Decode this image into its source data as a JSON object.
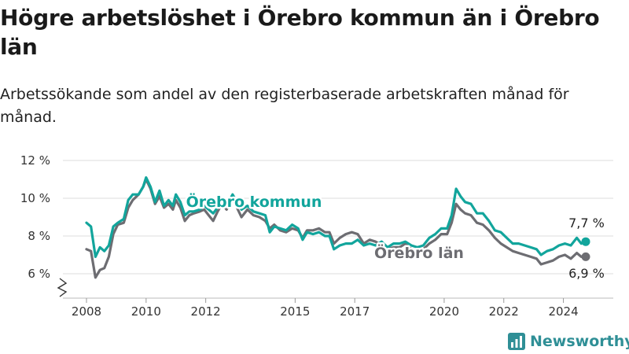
{
  "header": {
    "title": "Högre arbetslöshet i Örebro kommun än i Örebro län",
    "subtitle": "Arbetssökande som andel av den registerbaserade arbetskraften månad för månad."
  },
  "brand": {
    "name": "Newsworthy",
    "color": "#2f8f96"
  },
  "colors": {
    "kommun": "#12a59c",
    "lan": "#6d6d72",
    "grid": "#dddddd"
  },
  "chart_data": {
    "type": "line",
    "ylim": [
      5,
      12
    ],
    "y_ticks": [
      6,
      8,
      10,
      12
    ],
    "y_tick_labels": [
      "6 %",
      "8 %",
      "10 %",
      "12 %"
    ],
    "xlim": [
      2008,
      2025.6
    ],
    "x_ticks": [
      2008,
      2010,
      2012,
      2015,
      2017,
      2020,
      2022,
      2024
    ],
    "x_tick_labels": [
      "2008",
      "2010",
      "2012",
      "2015",
      "2017",
      "2020",
      "2022",
      "2024"
    ],
    "series": [
      {
        "name": "Örebro kommun",
        "color": "#12a59c",
        "end_label": "7,7 %",
        "points": [
          [
            2008.0,
            8.7
          ],
          [
            2008.15,
            8.5
          ],
          [
            2008.3,
            6.9
          ],
          [
            2008.45,
            7.4
          ],
          [
            2008.6,
            7.2
          ],
          [
            2008.75,
            7.5
          ],
          [
            2008.9,
            8.5
          ],
          [
            2009.05,
            8.7
          ],
          [
            2009.25,
            8.9
          ],
          [
            2009.4,
            9.9
          ],
          [
            2009.55,
            10.2
          ],
          [
            2009.75,
            10.2
          ],
          [
            2009.9,
            10.6
          ],
          [
            2010.0,
            11.1
          ],
          [
            2010.15,
            10.6
          ],
          [
            2010.3,
            9.8
          ],
          [
            2010.45,
            10.4
          ],
          [
            2010.6,
            9.6
          ],
          [
            2010.75,
            9.9
          ],
          [
            2010.9,
            9.6
          ],
          [
            2011.0,
            10.2
          ],
          [
            2011.15,
            9.8
          ],
          [
            2011.3,
            9.1
          ],
          [
            2011.45,
            9.3
          ],
          [
            2011.6,
            9.3
          ],
          [
            2011.8,
            9.4
          ],
          [
            2011.95,
            9.6
          ],
          [
            2012.1,
            9.4
          ],
          [
            2012.25,
            9.2
          ],
          [
            2012.4,
            9.5
          ],
          [
            2012.55,
            9.9
          ],
          [
            2012.7,
            9.6
          ],
          [
            2012.9,
            10.2
          ],
          [
            2013.05,
            9.8
          ],
          [
            2013.2,
            9.4
          ],
          [
            2013.4,
            9.6
          ],
          [
            2013.6,
            9.3
          ],
          [
            2013.8,
            9.2
          ],
          [
            2014.0,
            9.1
          ],
          [
            2014.15,
            8.2
          ],
          [
            2014.3,
            8.5
          ],
          [
            2014.5,
            8.4
          ],
          [
            2014.7,
            8.3
          ],
          [
            2014.9,
            8.6
          ],
          [
            2015.1,
            8.4
          ],
          [
            2015.25,
            7.8
          ],
          [
            2015.4,
            8.2
          ],
          [
            2015.6,
            8.1
          ],
          [
            2015.8,
            8.2
          ],
          [
            2016.0,
            8.0
          ],
          [
            2016.15,
            8.0
          ],
          [
            2016.3,
            7.3
          ],
          [
            2016.5,
            7.5
          ],
          [
            2016.7,
            7.6
          ],
          [
            2016.9,
            7.6
          ],
          [
            2017.1,
            7.8
          ],
          [
            2017.3,
            7.5
          ],
          [
            2017.5,
            7.6
          ],
          [
            2017.7,
            7.5
          ],
          [
            2017.9,
            7.7
          ],
          [
            2018.1,
            7.4
          ],
          [
            2018.3,
            7.6
          ],
          [
            2018.5,
            7.6
          ],
          [
            2018.7,
            7.7
          ],
          [
            2018.9,
            7.5
          ],
          [
            2019.1,
            7.4
          ],
          [
            2019.3,
            7.5
          ],
          [
            2019.5,
            7.9
          ],
          [
            2019.7,
            8.1
          ],
          [
            2019.9,
            8.4
          ],
          [
            2020.1,
            8.4
          ],
          [
            2020.25,
            9.1
          ],
          [
            2020.4,
            10.5
          ],
          [
            2020.55,
            10.1
          ],
          [
            2020.7,
            9.8
          ],
          [
            2020.9,
            9.7
          ],
          [
            2021.1,
            9.2
          ],
          [
            2021.3,
            9.2
          ],
          [
            2021.5,
            8.8
          ],
          [
            2021.7,
            8.3
          ],
          [
            2021.9,
            8.2
          ],
          [
            2022.1,
            7.9
          ],
          [
            2022.3,
            7.6
          ],
          [
            2022.5,
            7.6
          ],
          [
            2022.7,
            7.5
          ],
          [
            2022.9,
            7.4
          ],
          [
            2023.1,
            7.3
          ],
          [
            2023.25,
            7.0
          ],
          [
            2023.45,
            7.2
          ],
          [
            2023.65,
            7.3
          ],
          [
            2023.85,
            7.5
          ],
          [
            2024.05,
            7.6
          ],
          [
            2024.25,
            7.5
          ],
          [
            2024.45,
            7.9
          ],
          [
            2024.6,
            7.6
          ],
          [
            2024.75,
            7.7
          ]
        ]
      },
      {
        "name": "Örebro län",
        "color": "#6d6d72",
        "end_label": "6,9 %",
        "points": [
          [
            2008.0,
            7.3
          ],
          [
            2008.15,
            7.2
          ],
          [
            2008.3,
            5.8
          ],
          [
            2008.45,
            6.2
          ],
          [
            2008.6,
            6.3
          ],
          [
            2008.75,
            6.9
          ],
          [
            2008.9,
            8.1
          ],
          [
            2009.05,
            8.6
          ],
          [
            2009.25,
            8.7
          ],
          [
            2009.4,
            9.5
          ],
          [
            2009.55,
            9.9
          ],
          [
            2009.75,
            10.2
          ],
          [
            2009.9,
            10.6
          ],
          [
            2010.0,
            11.0
          ],
          [
            2010.15,
            10.5
          ],
          [
            2010.3,
            9.7
          ],
          [
            2010.45,
            10.1
          ],
          [
            2010.6,
            9.5
          ],
          [
            2010.75,
            9.7
          ],
          [
            2010.9,
            9.4
          ],
          [
            2011.0,
            9.9
          ],
          [
            2011.15,
            9.5
          ],
          [
            2011.3,
            8.8
          ],
          [
            2011.45,
            9.1
          ],
          [
            2011.6,
            9.2
          ],
          [
            2011.8,
            9.3
          ],
          [
            2011.95,
            9.4
          ],
          [
            2012.1,
            9.1
          ],
          [
            2012.25,
            8.8
          ],
          [
            2012.4,
            9.3
          ],
          [
            2012.55,
            9.7
          ],
          [
            2012.7,
            9.4
          ],
          [
            2012.9,
            10.0
          ],
          [
            2013.05,
            9.5
          ],
          [
            2013.2,
            9.0
          ],
          [
            2013.4,
            9.4
          ],
          [
            2013.6,
            9.1
          ],
          [
            2013.8,
            9.0
          ],
          [
            2014.0,
            8.8
          ],
          [
            2014.15,
            8.4
          ],
          [
            2014.3,
            8.6
          ],
          [
            2014.5,
            8.3
          ],
          [
            2014.7,
            8.2
          ],
          [
            2014.9,
            8.4
          ],
          [
            2015.1,
            8.3
          ],
          [
            2015.25,
            7.9
          ],
          [
            2015.4,
            8.3
          ],
          [
            2015.6,
            8.3
          ],
          [
            2015.8,
            8.4
          ],
          [
            2016.0,
            8.2
          ],
          [
            2016.15,
            8.2
          ],
          [
            2016.3,
            7.6
          ],
          [
            2016.5,
            7.9
          ],
          [
            2016.7,
            8.1
          ],
          [
            2016.9,
            8.2
          ],
          [
            2017.1,
            8.1
          ],
          [
            2017.3,
            7.6
          ],
          [
            2017.5,
            7.8
          ],
          [
            2017.7,
            7.7
          ],
          [
            2017.9,
            7.5
          ],
          [
            2018.1,
            7.3
          ],
          [
            2018.3,
            7.4
          ],
          [
            2018.5,
            7.4
          ],
          [
            2018.7,
            7.6
          ],
          [
            2018.9,
            7.3
          ],
          [
            2019.1,
            7.2
          ],
          [
            2019.3,
            7.3
          ],
          [
            2019.5,
            7.6
          ],
          [
            2019.7,
            7.8
          ],
          [
            2019.9,
            8.1
          ],
          [
            2020.1,
            8.1
          ],
          [
            2020.25,
            8.7
          ],
          [
            2020.4,
            9.7
          ],
          [
            2020.55,
            9.4
          ],
          [
            2020.7,
            9.2
          ],
          [
            2020.9,
            9.1
          ],
          [
            2021.1,
            8.7
          ],
          [
            2021.3,
            8.6
          ],
          [
            2021.5,
            8.3
          ],
          [
            2021.7,
            7.9
          ],
          [
            2021.9,
            7.6
          ],
          [
            2022.1,
            7.4
          ],
          [
            2022.3,
            7.2
          ],
          [
            2022.5,
            7.1
          ],
          [
            2022.7,
            7.0
          ],
          [
            2022.9,
            6.9
          ],
          [
            2023.1,
            6.8
          ],
          [
            2023.25,
            6.5
          ],
          [
            2023.45,
            6.6
          ],
          [
            2023.65,
            6.7
          ],
          [
            2023.85,
            6.9
          ],
          [
            2024.05,
            7.0
          ],
          [
            2024.25,
            6.8
          ],
          [
            2024.45,
            7.1
          ],
          [
            2024.6,
            6.9
          ],
          [
            2024.75,
            6.9
          ]
        ]
      }
    ]
  }
}
